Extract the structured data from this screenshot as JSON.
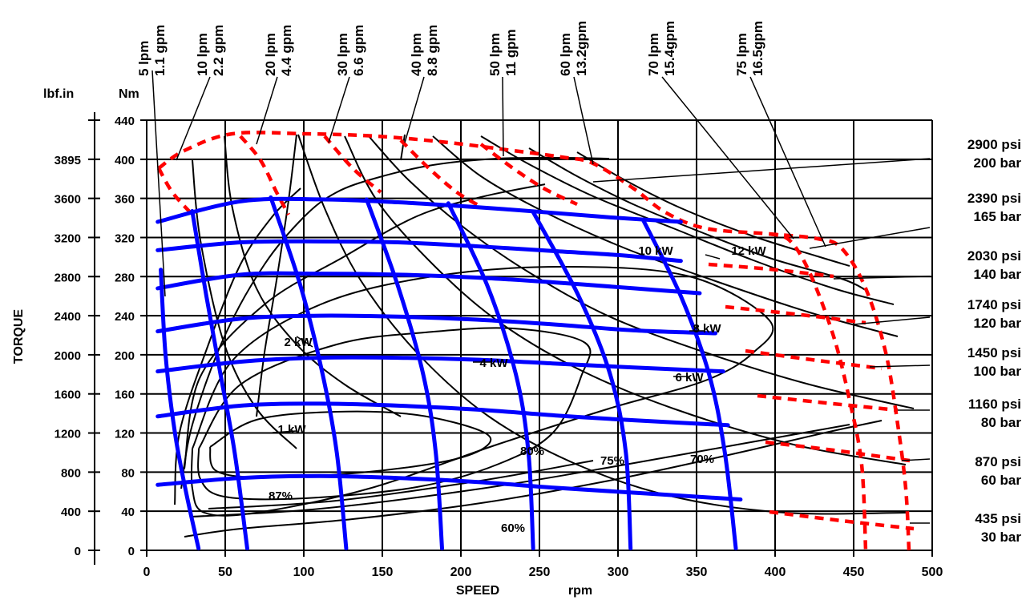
{
  "colors": {
    "flow": "#0000ff",
    "pressure_limit": "#ff0000",
    "efficiency": "#000000",
    "grid": "#000000"
  },
  "chart_data": {
    "type": "line",
    "xlabel": "SPEED",
    "xunit": "rpm",
    "ylabel": "TORQUE",
    "y_unit_left": "lbf.in",
    "y_unit_right": "Nm",
    "xlim": [
      0,
      500
    ],
    "ylim": [
      0,
      440
    ],
    "grid": true,
    "x_ticks": [
      0,
      50,
      100,
      150,
      200,
      250,
      300,
      350,
      400,
      450,
      500
    ],
    "y_ticks_nm": [
      0,
      40,
      80,
      120,
      160,
      200,
      240,
      280,
      320,
      360,
      400,
      440
    ],
    "y_ticks_lbfin": [
      "0",
      "400",
      "800",
      "1200",
      "1600",
      "2000",
      "2400",
      "2800",
      "3200",
      "3600",
      "3895"
    ],
    "y_ticks_lbfin_nm": [
      0,
      40,
      80,
      120,
      160,
      200,
      240,
      280,
      320,
      360,
      400,
      440
    ],
    "flow_labels": [
      {
        "lpm": "5 lpm",
        "gpm": "1.1 gpm"
      },
      {
        "lpm": "10 lpm",
        "gpm": "2.2 gpm"
      },
      {
        "lpm": "20 lpm",
        "gpm": "4.4 gpm"
      },
      {
        "lpm": "30 lpm",
        "gpm": "6.6 gpm"
      },
      {
        "lpm": "40 lpm",
        "gpm": "8.8 gpm"
      },
      {
        "lpm": "50 lpm",
        "gpm": "11 gpm"
      },
      {
        "lpm": "60 lpm",
        "gpm": "13.2gpm"
      },
      {
        "lpm": "70 lpm",
        "gpm": "15.4gpm"
      },
      {
        "lpm": "75 lpm",
        "gpm": "16.5gpm"
      }
    ],
    "pressure_labels": [
      {
        "psi": "2900 psi",
        "bar": "200 bar"
      },
      {
        "psi": "2390 psi",
        "bar": "165 bar"
      },
      {
        "psi": "2030 psi",
        "bar": "140 bar"
      },
      {
        "psi": "1740 psi",
        "bar": "120 bar"
      },
      {
        "psi": "1450 psi",
        "bar": "100 bar"
      },
      {
        "psi": "1160 psi",
        "bar": "80 bar"
      },
      {
        "psi": "870 psi",
        "bar": "60 bar"
      },
      {
        "psi": "435 psi",
        "bar": "30 bar"
      }
    ],
    "power_labels": [
      "1 kW",
      "2 kW",
      "4 kW",
      "6 kW",
      "8 kW",
      "10 kW",
      "12 kW"
    ],
    "efficiency_labels": [
      "87%",
      "80%",
      "75%",
      "70%",
      "60%"
    ],
    "series": [
      {
        "kind": "pressure",
        "points": [
          [
            7,
            336
          ],
          [
            60,
            357
          ],
          [
            110,
            359
          ],
          [
            160,
            356
          ],
          [
            210,
            351
          ],
          [
            260,
            345
          ],
          [
            300,
            340
          ],
          [
            340,
            336
          ]
        ]
      },
      {
        "kind": "pressure",
        "points": [
          [
            7,
            307
          ],
          [
            60,
            315
          ],
          [
            110,
            316
          ],
          [
            160,
            315
          ],
          [
            210,
            311
          ],
          [
            260,
            306
          ],
          [
            300,
            302
          ],
          [
            340,
            296
          ]
        ]
      },
      {
        "kind": "pressure",
        "points": [
          [
            7,
            268
          ],
          [
            60,
            282
          ],
          [
            110,
            283
          ],
          [
            160,
            282
          ],
          [
            210,
            279
          ],
          [
            260,
            274
          ],
          [
            310,
            268
          ],
          [
            352,
            263
          ]
        ]
      },
      {
        "kind": "pressure",
        "points": [
          [
            7,
            224
          ],
          [
            60,
            237
          ],
          [
            110,
            240
          ],
          [
            160,
            239
          ],
          [
            210,
            236
          ],
          [
            260,
            231
          ],
          [
            310,
            225
          ],
          [
            362,
            222
          ]
        ]
      },
      {
        "kind": "pressure",
        "points": [
          [
            7,
            183
          ],
          [
            60,
            193
          ],
          [
            110,
            197
          ],
          [
            160,
            197
          ],
          [
            210,
            195
          ],
          [
            260,
            191
          ],
          [
            310,
            187
          ],
          [
            367,
            183
          ]
        ]
      },
      {
        "kind": "pressure",
        "points": [
          [
            7,
            137
          ],
          [
            60,
            148
          ],
          [
            110,
            150
          ],
          [
            160,
            148
          ],
          [
            210,
            144
          ],
          [
            260,
            138
          ],
          [
            310,
            133
          ],
          [
            370,
            128
          ]
        ]
      },
      {
        "kind": "pressure",
        "points": [
          [
            7,
            67
          ],
          [
            60,
            74
          ],
          [
            110,
            76
          ],
          [
            160,
            74
          ],
          [
            210,
            70
          ],
          [
            260,
            64
          ],
          [
            320,
            58
          ],
          [
            378,
            52
          ]
        ]
      },
      {
        "kind": "flow",
        "points": [
          [
            9,
            287
          ],
          [
            12,
            200
          ],
          [
            18,
            120
          ],
          [
            25,
            60
          ],
          [
            33,
            2
          ]
        ]
      },
      {
        "kind": "flow",
        "points": [
          [
            29,
            347
          ],
          [
            38,
            260
          ],
          [
            47,
            180
          ],
          [
            56,
            100
          ],
          [
            64,
            2
          ]
        ]
      },
      {
        "kind": "flow",
        "points": [
          [
            79,
            361
          ],
          [
            98,
            270
          ],
          [
            112,
            180
          ],
          [
            121,
            100
          ],
          [
            127,
            2
          ]
        ]
      },
      {
        "kind": "flow",
        "points": [
          [
            140,
            359
          ],
          [
            160,
            270
          ],
          [
            176,
            180
          ],
          [
            184,
            100
          ],
          [
            188,
            2
          ]
        ]
      },
      {
        "kind": "flow",
        "points": [
          [
            192,
            355
          ],
          [
            217,
            270
          ],
          [
            235,
            180
          ],
          [
            243,
            100
          ],
          [
            246,
            2
          ]
        ]
      },
      {
        "kind": "flow",
        "points": [
          [
            246,
            346
          ],
          [
            275,
            260
          ],
          [
            295,
            180
          ],
          [
            305,
            100
          ],
          [
            308,
            2
          ]
        ]
      },
      {
        "kind": "flow",
        "points": [
          [
            316,
            338
          ],
          [
            340,
            260
          ],
          [
            358,
            180
          ],
          [
            368,
            100
          ],
          [
            375,
            2
          ]
        ]
      }
    ]
  }
}
